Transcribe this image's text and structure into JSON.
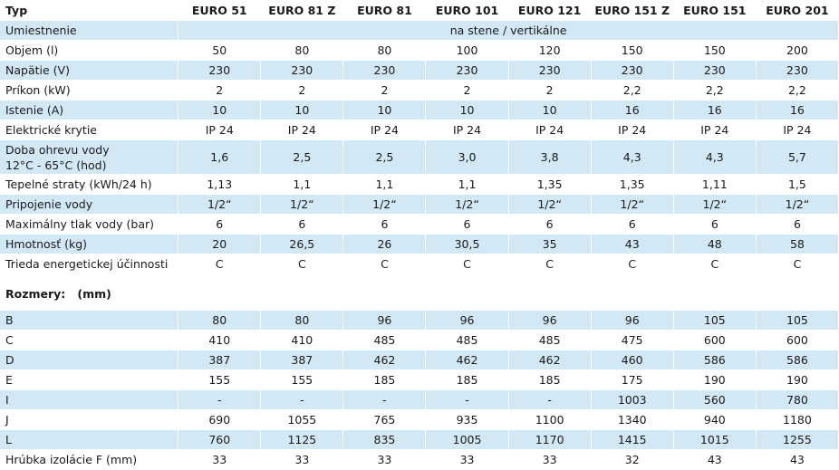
{
  "header": {
    "label": "Typ",
    "columns": [
      "EURO 51",
      "EURO 81 Z",
      "EURO 81",
      "EURO 101",
      "EURO 121",
      "EURO 151 Z",
      "EURO 151",
      "EURO 201"
    ]
  },
  "specs": {
    "rows": [
      {
        "label": "Umiestnenie",
        "value": "na stene / vertikálne"
      },
      {
        "label": "Objem  (l)",
        "values": [
          "50",
          "80",
          "80",
          "100",
          "120",
          "150",
          "150",
          "200"
        ]
      },
      {
        "label": "Napätie  (V)",
        "values": [
          "230",
          "230",
          "230",
          "230",
          "230",
          "230",
          "230",
          "230"
        ]
      },
      {
        "label": "Príkon  (kW)",
        "values": [
          "2",
          "2",
          "2",
          "2",
          "2",
          "2,2",
          "2,2",
          "2,2"
        ]
      },
      {
        "label": "Istenie  (A)",
        "values": [
          "10",
          "10",
          "10",
          "10",
          "10",
          "16",
          "16",
          "16"
        ]
      },
      {
        "label": "Elektrické krytie",
        "values": [
          "IP 24",
          "IP 24",
          "IP 24",
          "IP 24",
          "IP 24",
          "IP 24",
          "IP 24",
          "IP 24"
        ]
      },
      {
        "label_lines": [
          "Doba ohrevu vody",
          "12°C - 65°C  (hod)"
        ],
        "values": [
          "1,6",
          "2,5",
          "2,5",
          "3,0",
          "3,8",
          "4,3",
          "4,3",
          "5,7"
        ]
      },
      {
        "label": "Tepelné straty  (kWh/24 h)",
        "values": [
          "1,13",
          "1,1",
          "1,1",
          "1,1",
          "1,35",
          "1,35",
          "1,11",
          "1,5"
        ]
      },
      {
        "label": "Pripojenie vody",
        "values": [
          "1/2“",
          "1/2“",
          "1/2“",
          "1/2“",
          "1/2“",
          "1/2“",
          "1/2“",
          "1/2“"
        ]
      },
      {
        "label": "Maximálny tlak vody  (bar)",
        "values": [
          "6",
          "6",
          "6",
          "6",
          "6",
          "6",
          "6",
          "6"
        ]
      },
      {
        "label": "Hmotnosť  (kg)",
        "values": [
          "20",
          "26,5",
          "26",
          "30,5",
          "35",
          "43",
          "48",
          "58"
        ]
      },
      {
        "label": "Trieda energetickej účinnosti",
        "values": [
          "C",
          "C",
          "C",
          "C",
          "C",
          "C",
          "C",
          "C"
        ]
      }
    ]
  },
  "dimensions": {
    "title": "Rozmery:   (mm)",
    "rows": [
      {
        "label": "B",
        "values": [
          "80",
          "80",
          "96",
          "96",
          "96",
          "96",
          "105",
          "105"
        ]
      },
      {
        "label": "C",
        "values": [
          "410",
          "410",
          "485",
          "485",
          "485",
          "475",
          "600",
          "600"
        ]
      },
      {
        "label": "D",
        "values": [
          "387",
          "387",
          "462",
          "462",
          "462",
          "460",
          "586",
          "586"
        ]
      },
      {
        "label": "E",
        "values": [
          "155",
          "155",
          "185",
          "185",
          "185",
          "175",
          "190",
          "190"
        ]
      },
      {
        "label": "I",
        "values": [
          "-",
          "-",
          "-",
          "-",
          "-",
          "1003",
          "560",
          "780"
        ]
      },
      {
        "label": "J",
        "values": [
          "690",
          "1055",
          "765",
          "935",
          "1100",
          "1340",
          "940",
          "1180"
        ]
      },
      {
        "label": "L",
        "values": [
          "760",
          "1125",
          "835",
          "1005",
          "1170",
          "1415",
          "1015",
          "1255"
        ]
      },
      {
        "label": "Hrúbka izolácie F  (mm)",
        "values": [
          "33",
          "33",
          "33",
          "33",
          "33",
          "32",
          "43",
          "43"
        ]
      }
    ]
  }
}
